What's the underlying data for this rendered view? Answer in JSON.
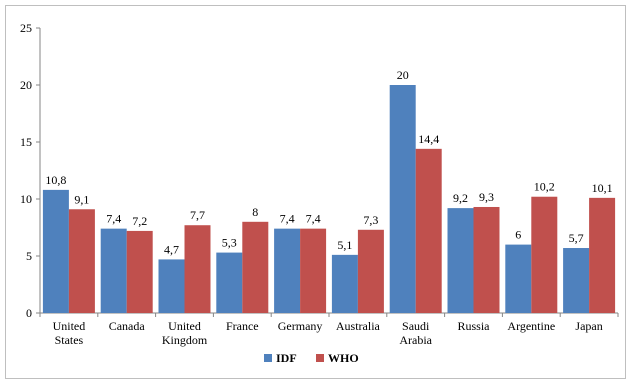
{
  "chart_data": {
    "type": "bar",
    "categories": [
      [
        "United",
        "States"
      ],
      [
        "Canada"
      ],
      [
        "United",
        "Kingdom"
      ],
      [
        "France"
      ],
      [
        "Germany"
      ],
      [
        "Australia"
      ],
      [
        "Saudi",
        "Arabia"
      ],
      [
        "Russia"
      ],
      [
        "Argentine"
      ],
      [
        "Japan"
      ]
    ],
    "series": [
      {
        "name": "IDF",
        "color": "#4f81bd",
        "values": [
          10.8,
          7.4,
          4.7,
          5.3,
          7.4,
          5.1,
          20,
          9.2,
          6,
          5.7
        ],
        "labels": [
          "10,8",
          "7,4",
          "4,7",
          "5,3",
          "7,4",
          "5,1",
          "20",
          "9,2",
          "6",
          "5,7"
        ]
      },
      {
        "name": "WHO",
        "color": "#c0504d",
        "values": [
          9.1,
          7.2,
          7.7,
          8,
          7.4,
          7.3,
          14.4,
          9.3,
          10.2,
          10.1
        ],
        "labels": [
          "9,1",
          "7,2",
          "7,7",
          "8",
          "7,4",
          "7,3",
          "14,4",
          "9,3",
          "10,2",
          "10,1"
        ]
      }
    ],
    "y_ticks": [
      "0",
      "5",
      "10",
      "15",
      "20",
      "25"
    ],
    "ylim": [
      0,
      25
    ],
    "grid": false,
    "legend_position": "bottom",
    "title": "",
    "xlabel": "",
    "ylabel": ""
  }
}
